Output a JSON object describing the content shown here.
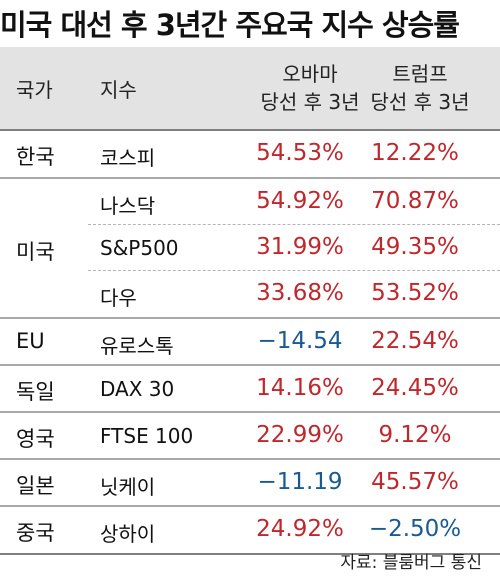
{
  "title": "미국 대선 후 3년간 주요국 지수 상승률",
  "headers": {
    "country": "국가",
    "index": "지수",
    "obama_line1": "오바마",
    "obama_line2": "당선 후 3년",
    "trump_line1": "트럼프",
    "trump_line2": "당선 후 3년"
  },
  "rows": {
    "korea": {
      "country": "한국",
      "index": "코스피",
      "obama": "54.53%",
      "trump": "12.22%"
    },
    "us": {
      "country": "미국",
      "nasdaq": {
        "index": "나스닥",
        "obama": "54.92%",
        "trump": "70.87%"
      },
      "sp500": {
        "index": "S&P500",
        "obama": "31.99%",
        "trump": "49.35%"
      },
      "dow": {
        "index": "다우",
        "obama": "33.68%",
        "trump": "53.52%"
      }
    },
    "eu": {
      "country": "EU",
      "index": "유로스톡",
      "obama": "−14.54",
      "trump": "22.54%"
    },
    "germany": {
      "country": "독일",
      "index": "DAX 30",
      "obama": "14.16%",
      "trump": "24.45%"
    },
    "uk": {
      "country": "영국",
      "index": "FTSE 100",
      "obama": "22.99%",
      "trump": "9.12%"
    },
    "japan": {
      "country": "일본",
      "index": "닛케이",
      "obama": "−11.19",
      "trump": "45.57%"
    },
    "china": {
      "country": "중국",
      "index": "상하이",
      "obama": "24.92%",
      "trump": "−2.50%"
    }
  },
  "colors": {
    "positive": "#c0272d",
    "negative": "#1a5a92",
    "header_bg": "#e3e3e3"
  },
  "source": "자료:  블룸버그 통신"
}
